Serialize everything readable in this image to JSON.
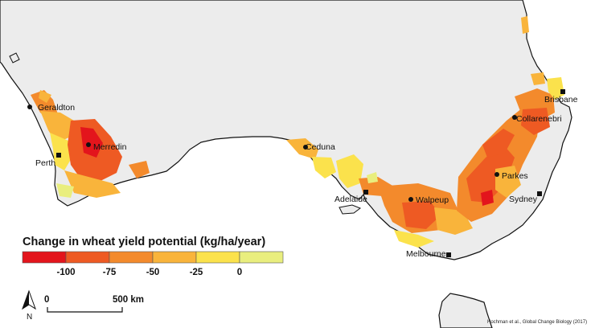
{
  "legend": {
    "title": "Change in wheat yield potential (kg/ha/year)",
    "colors": [
      "#e3151c",
      "#ee5a23",
      "#f38a2c",
      "#f9b43b",
      "#fbe24c",
      "#e9ee7e"
    ],
    "tick_labels": [
      "-100",
      "-75",
      "-50",
      "-25",
      "0"
    ]
  },
  "cities": [
    {
      "name": "Geraldton"
    },
    {
      "name": "Merredin"
    },
    {
      "name": "Perth"
    },
    {
      "name": "Ceduna"
    },
    {
      "name": "Adelaide"
    },
    {
      "name": "Walpeup"
    },
    {
      "name": "Melbourne"
    },
    {
      "name": "Parkes"
    },
    {
      "name": "Sydney"
    },
    {
      "name": "Collarenebri"
    },
    {
      "name": "Brisbane"
    }
  ],
  "scale_bar": {
    "start_label": "0",
    "end_label": "500 km"
  },
  "north_arrow": {
    "label": "N"
  },
  "credit": "Hochman et al., Global Change Biology (2017)",
  "colors": {
    "land": "#ececec",
    "sea": "#ffffff",
    "coast": "#111111"
  }
}
